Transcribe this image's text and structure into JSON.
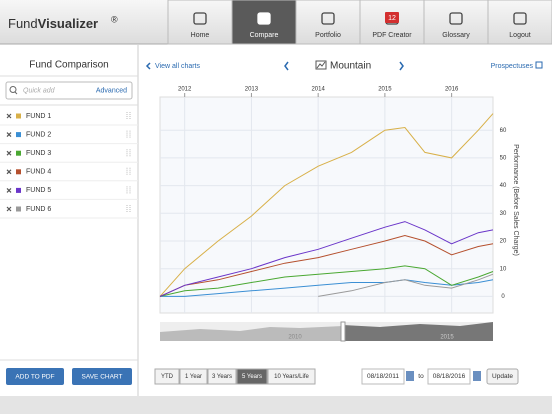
{
  "header": {
    "logo_prefix": "Fund",
    "logo_name": "Visualizer",
    "logo_mark": "®"
  },
  "nav": [
    "Home",
    "Compare",
    "Portfolio",
    "PDF Creator",
    "Glossary",
    "Logout"
  ],
  "nav_active": 1,
  "nav_badge": "12",
  "sidebar": {
    "title": "Fund Comparison",
    "search_placeholder": "Quick add",
    "advanced": "Advanced",
    "buttons": [
      "ADD TO PDF",
      "SAVE CHART"
    ]
  },
  "chart_header": {
    "back": "View all charts",
    "chart_name": "Mountain",
    "prospectuses": "Prospectuses"
  },
  "chart_data": {
    "type": "line",
    "y_label": "Performance (Before Sales Charge)",
    "x": [
      2011.63,
      2012,
      2012.5,
      2013,
      2013.5,
      2014,
      2014.5,
      2015,
      2015.3,
      2015.6,
      2016,
      2016.4,
      2016.62
    ],
    "xlim": [
      2011.63,
      2016.62
    ],
    "xticks": [
      2012,
      2013,
      2014,
      2015,
      2016
    ],
    "ylim": [
      -6,
      72
    ],
    "yticks": [
      0,
      10,
      20,
      30,
      40,
      50,
      60
    ],
    "grid": true,
    "series": [
      {
        "name": "FUND 1",
        "color": "#d8b048",
        "values": [
          0,
          10,
          20,
          29,
          40,
          47,
          52,
          60,
          61,
          52,
          50,
          60,
          66
        ]
      },
      {
        "name": "FUND 2",
        "color": "#3b8fd4",
        "values": [
          0,
          0,
          1,
          2,
          3,
          4,
          5,
          5,
          6,
          5,
          4,
          5,
          6
        ]
      },
      {
        "name": "FUND 3",
        "color": "#4aa832",
        "values": [
          0,
          2,
          3,
          5,
          7,
          8,
          9,
          10,
          11,
          10,
          4,
          7,
          9
        ]
      },
      {
        "name": "FUND 4",
        "color": "#b5502e",
        "values": [
          0,
          4,
          6,
          9,
          12,
          14,
          17,
          20,
          22,
          20,
          15,
          18,
          19
        ]
      },
      {
        "name": "FUND 5",
        "color": "#6a35c9",
        "values": [
          0,
          4,
          7,
          10,
          14,
          17,
          21,
          25,
          27,
          24,
          19,
          23,
          24
        ]
      },
      {
        "name": "FUND 6",
        "color": "#9a9a9a",
        "values": [
          null,
          null,
          null,
          null,
          null,
          0,
          2,
          5,
          6,
          4,
          3,
          6,
          8
        ]
      }
    ]
  },
  "navigator": {
    "labels": [
      "2010",
      "2015"
    ]
  },
  "controls": {
    "ranges": [
      "YTD",
      "1 Year",
      "3 Years",
      "5 Years",
      "10 Years/Life"
    ],
    "active_range": 3,
    "from": "08/18/2011",
    "to_label": "to",
    "to": "08/18/2016",
    "update": "Update"
  }
}
